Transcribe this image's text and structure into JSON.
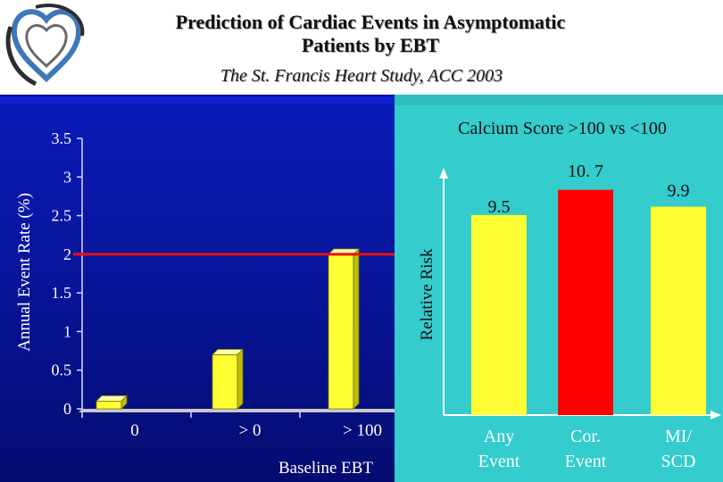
{
  "header": {
    "title_line1": "Prediction of Cardiac Events in Asymptomatic",
    "title_line2": "Patients by EBT",
    "subtitle": "The St. Francis Heart Study, ACC 2003",
    "logo_icon": "heart-logo-icon"
  },
  "colors": {
    "left_background": "#0a1bb8",
    "right_background": "#34cccc",
    "bar_yellow": "#ffff33",
    "bar_red": "#ff0000",
    "reference_line": "#e81010"
  },
  "chart_data": [
    {
      "type": "bar",
      "title": "",
      "xlabel": "Baseline EBT",
      "ylabel": "Annual Event Rate (%)",
      "categories": [
        "0",
        "> 0",
        "> 100"
      ],
      "values": [
        0.1,
        0.7,
        2.0
      ],
      "ylim": [
        0,
        3.5
      ],
      "yticks": [
        "0",
        "0.5",
        "1",
        "1.5",
        "2",
        "2.5",
        "3",
        "3.5"
      ],
      "reference_line": 2.0
    },
    {
      "type": "bar",
      "title": "Calcium Score >100 vs <100",
      "xlabel": "",
      "ylabel": "Relative Risk",
      "categories": [
        [
          "Any",
          "Event"
        ],
        [
          "Cor.",
          "Event"
        ],
        [
          "MI/",
          "SCD"
        ]
      ],
      "values": [
        9.5,
        10.7,
        9.9
      ],
      "value_labels": [
        "9.5",
        "10. 7",
        "9.9"
      ],
      "colors": [
        "#ffff33",
        "#ff0000",
        "#ffff33"
      ],
      "ylim": [
        0,
        12
      ]
    }
  ]
}
